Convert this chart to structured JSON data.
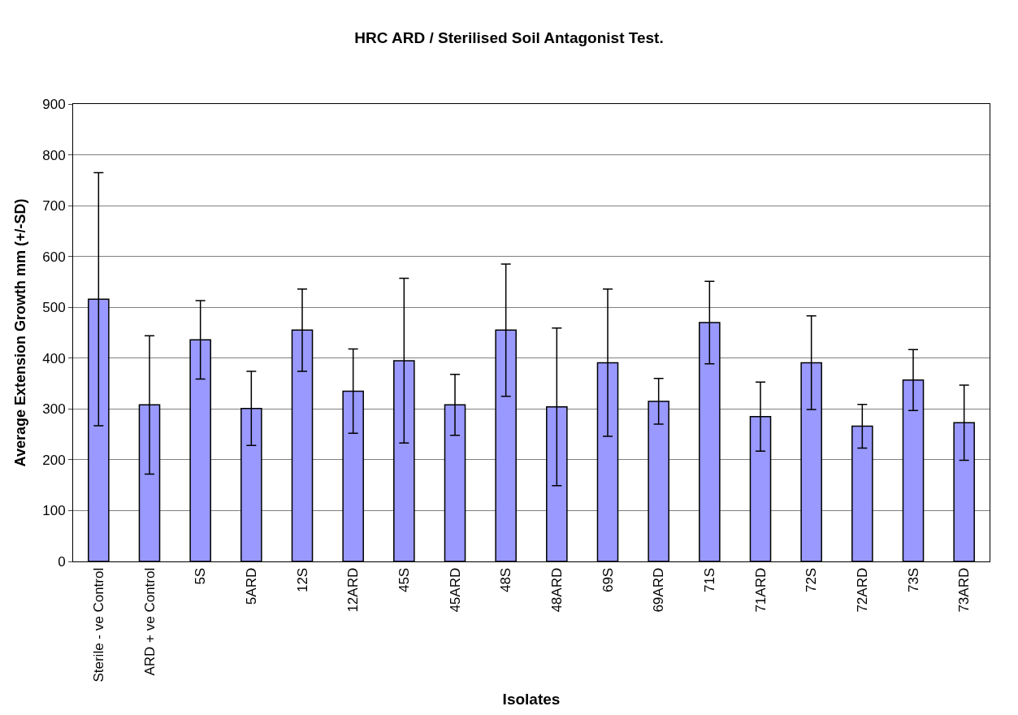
{
  "chart_data": {
    "type": "bar",
    "title": "HRC ARD / Sterilised Soil Antagonist Test.",
    "xlabel": "Isolates",
    "ylabel": "Average Extension Growth mm (+/-SD)",
    "categories": [
      "Sterile - ve Control",
      "ARD + ve Control",
      "5S",
      "5ARD",
      "12S",
      "12ARD",
      "45S",
      "45ARD",
      "48S",
      "48ARD",
      "69S",
      "69ARD",
      "71S",
      "71ARD",
      "72S",
      "72ARD",
      "73S",
      "73ARD"
    ],
    "values": [
      516,
      308,
      436,
      301,
      455,
      335,
      395,
      308,
      455,
      304,
      391,
      315,
      470,
      285,
      391,
      266,
      357,
      273
    ],
    "errors": [
      249,
      136,
      77,
      73,
      81,
      83,
      162,
      60,
      130,
      155,
      145,
      45,
      81,
      68,
      92,
      43,
      60,
      74
    ],
    "color": "#9999ff",
    "ylim": [
      0,
      900
    ],
    "yticks": [
      0,
      100,
      200,
      300,
      400,
      500,
      600,
      700,
      800,
      900
    ],
    "grid": "y",
    "legend": false
  }
}
